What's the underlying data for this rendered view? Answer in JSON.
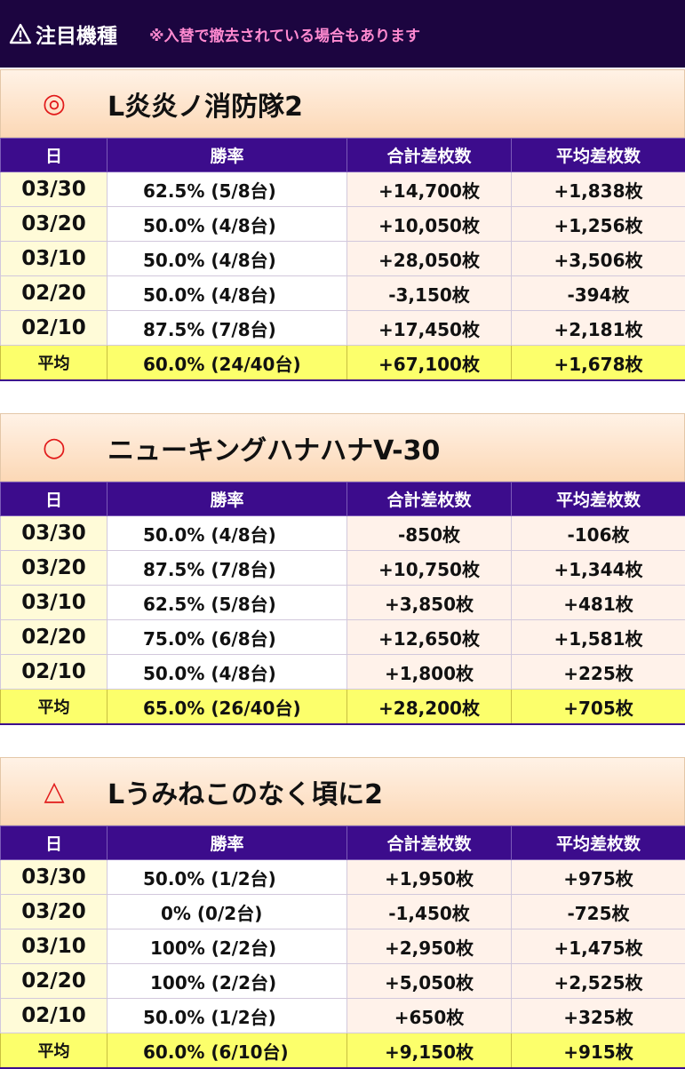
{
  "header": {
    "title": "注目機種",
    "note": "※入替で撤去されている場合もあります"
  },
  "columns": [
    "日",
    "勝率",
    "合計差枚数",
    "平均差枚数"
  ],
  "sections": [
    {
      "mark": "◎",
      "title": "L炎炎ノ消防隊2",
      "rows": [
        {
          "date": "03/30",
          "rate": "62.5% (5/8台)",
          "total": "+14,700枚",
          "avg": "+1,838枚"
        },
        {
          "date": "03/20",
          "rate": "50.0% (4/8台)",
          "total": "+10,050枚",
          "avg": "+1,256枚"
        },
        {
          "date": "03/10",
          "rate": "50.0% (4/8台)",
          "total": "+28,050枚",
          "avg": "+3,506枚"
        },
        {
          "date": "02/20",
          "rate": "50.0% (4/8台)",
          "total": "-3,150枚",
          "avg": "-394枚"
        },
        {
          "date": "02/10",
          "rate": "87.5% (7/8台)",
          "total": "+17,450枚",
          "avg": "+2,181枚"
        }
      ],
      "summary": {
        "label": "平均",
        "rate": "60.0% (24/40台)",
        "total": "+67,100枚",
        "avg": "+1,678枚"
      }
    },
    {
      "mark": "○",
      "title": "ニューキングハナハナV-30",
      "rows": [
        {
          "date": "03/30",
          "rate": "50.0% (4/8台)",
          "total": "-850枚",
          "avg": "-106枚"
        },
        {
          "date": "03/20",
          "rate": "87.5% (7/8台)",
          "total": "+10,750枚",
          "avg": "+1,344枚"
        },
        {
          "date": "03/10",
          "rate": "62.5% (5/8台)",
          "total": "+3,850枚",
          "avg": "+481枚"
        },
        {
          "date": "02/20",
          "rate": "75.0% (6/8台)",
          "total": "+12,650枚",
          "avg": "+1,581枚"
        },
        {
          "date": "02/10",
          "rate": "50.0% (4/8台)",
          "total": "+1,800枚",
          "avg": "+225枚"
        }
      ],
      "summary": {
        "label": "平均",
        "rate": "65.0% (26/40台)",
        "total": "+28,200枚",
        "avg": "+705枚"
      }
    },
    {
      "mark": "△",
      "title": "Lうみねこのなく頃に2",
      "rows": [
        {
          "date": "03/30",
          "rate": "50.0% (1/2台)",
          "total": "+1,950枚",
          "avg": "+975枚"
        },
        {
          "date": "03/20",
          "rate": "0% (0/2台)",
          "total": "-1,450枚",
          "avg": "-725枚"
        },
        {
          "date": "03/10",
          "rate": "100% (2/2台)",
          "total": "+2,950枚",
          "avg": "+1,475枚"
        },
        {
          "date": "02/20",
          "rate": "100% (2/2台)",
          "total": "+5,050枚",
          "avg": "+2,525枚"
        },
        {
          "date": "02/10",
          "rate": "50.0% (1/2台)",
          "total": "+650枚",
          "avg": "+325枚"
        }
      ],
      "summary": {
        "label": "平均",
        "rate": "60.0% (6/10台)",
        "total": "+9,150枚",
        "avg": "+915枚"
      }
    }
  ]
}
